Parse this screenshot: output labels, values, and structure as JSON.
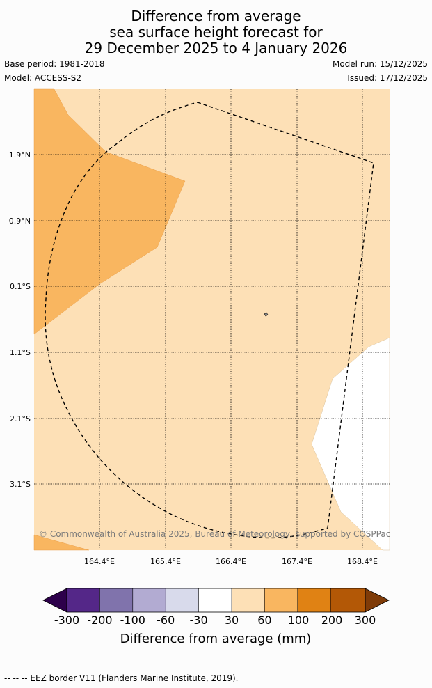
{
  "title": {
    "line1": "Difference from average",
    "line2": "sea surface height forecast for",
    "line3": "29 December 2025 to 4 January 2026"
  },
  "meta": {
    "base_period": "Base period: 1981-2018",
    "model": "Model: ACCESS-S2",
    "model_run": "Model run: 15/12/2025",
    "issued": "Issued: 17/12/2025"
  },
  "map": {
    "copyright": "© Commonwealth of Australia 2025, Bureau of Meteorology, supported by COSPPac",
    "lat_labels": [
      "1.9°N",
      "0.9°N",
      "0.1°S",
      "1.1°S",
      "2.1°S",
      "3.1°S"
    ],
    "lon_labels": [
      "164.4°E",
      "165.4°E",
      "166.4°E",
      "167.4°E",
      "168.4°E"
    ],
    "colors": {
      "band_30_60": "#fde0b6",
      "band_60_100": "#f9b660",
      "band_-30_30": "#ffffff"
    }
  },
  "colorbar": {
    "title": "Difference from average (mm)",
    "ticks": [
      "-300",
      "-200",
      "-100",
      "-60",
      "-30",
      "30",
      "60",
      "100",
      "200",
      "300"
    ],
    "colors": [
      "#2d004b",
      "#542788",
      "#8073ac",
      "#b2abd2",
      "#d8daeb",
      "#ffffff",
      "#fde0b6",
      "#f9b660",
      "#e08214",
      "#b35806",
      "#7f3b08"
    ]
  },
  "footer": "--  --  -- EEZ border V11 (Flanders Marine Institute, 2019)."
}
